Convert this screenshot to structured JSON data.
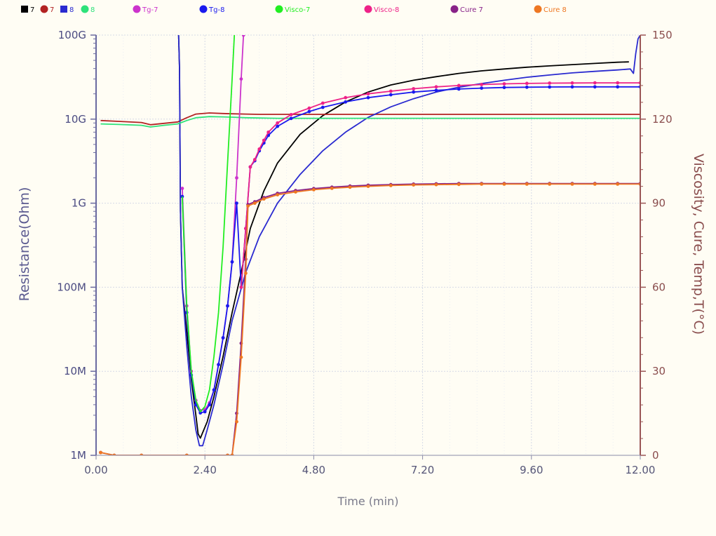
{
  "chart_data": {
    "type": "line",
    "xlabel": "Time (min)",
    "ylabel_left": "Resistance(Ohm)",
    "ylabel_right": "Viscosity, Cure, Temp,T(°C)",
    "xlim": [
      0,
      12
    ],
    "ylim_left": [
      1000000,
      100000000000
    ],
    "ylim_right": [
      0,
      150
    ],
    "left_scale": "log",
    "grid": true,
    "x_ticks": [
      "0.00",
      "2.40",
      "4.80",
      "7.20",
      "9.60",
      "12.00"
    ],
    "y_left_ticks": [
      "1M",
      "10M",
      "100M",
      "1G",
      "10G",
      "100G"
    ],
    "y_right_ticks": [
      "0",
      "30",
      "60",
      "90",
      "120",
      "150"
    ],
    "legend": [
      {
        "label": "7",
        "color": "#000000",
        "marker": "square"
      },
      {
        "label": "7",
        "color": "#b22222",
        "marker": "circle"
      },
      {
        "label": "8",
        "color": "#2a2ad0",
        "marker": "square"
      },
      {
        "label": "8",
        "color": "#2ee27a",
        "marker": "circle"
      },
      {
        "label": "Tg-7",
        "color": "#cc33cc",
        "marker": "circle"
      },
      {
        "label": "Tg-8",
        "color": "#1a1aee",
        "marker": "circle"
      },
      {
        "label": "Visco-7",
        "color": "#22ee22",
        "marker": "circle"
      },
      {
        "label": "Visco-8",
        "color": "#ee2288",
        "marker": "circle"
      },
      {
        "label": "Cure 7",
        "color": "#882288",
        "marker": "circle"
      },
      {
        "label": "Cure 8",
        "color": "#ee7722",
        "marker": "circle"
      }
    ],
    "series": [
      {
        "axis": "left",
        "color": "#000000",
        "markers": false,
        "x": [
          1.82,
          1.84,
          1.86,
          1.9,
          2.0,
          2.1,
          2.2,
          2.25,
          2.3,
          2.45,
          2.6,
          2.8,
          3.0,
          3.2,
          3.4,
          3.7,
          4.0,
          4.5,
          5.0,
          5.5,
          6.0,
          6.5,
          7.0,
          7.5,
          8.0,
          8.5,
          9.0,
          9.5,
          10.0,
          10.5,
          11.0,
          11.5,
          11.75
        ],
        "y": [
          100000000000,
          40000000000,
          800000000,
          100000000,
          30000000,
          8000000,
          3000000,
          1800000,
          1600000,
          2500000,
          5000000,
          15000000,
          50000000,
          150000000,
          500000000,
          1400000000,
          3000000000,
          6600000000,
          11000000000,
          16000000000,
          21000000000,
          25500000000,
          29000000000,
          32000000000,
          35000000000,
          37500000000,
          39500000000,
          41500000000,
          43000000000,
          44500000000,
          46000000000,
          47500000000,
          48000000000
        ]
      },
      {
        "axis": "right",
        "color": "#b22222",
        "markers": false,
        "x": [
          0.1,
          0.5,
          1.0,
          1.2,
          1.5,
          1.8,
          2.0,
          2.2,
          2.5,
          2.8,
          3.0,
          3.3,
          3.6,
          4.0,
          5.0,
          7.0,
          9.0,
          11.0,
          12.0
        ],
        "y": [
          119.5,
          119.2,
          118.8,
          118.0,
          118.5,
          119.0,
          120.5,
          121.8,
          122.2,
          122.0,
          121.9,
          121.8,
          121.7,
          121.7,
          121.7,
          121.7,
          121.7,
          121.7,
          121.7
        ]
      },
      {
        "axis": "left",
        "color": "#2a2ad0",
        "markers": false,
        "x": [
          1.82,
          1.84,
          1.86,
          1.9,
          2.0,
          2.1,
          2.2,
          2.28,
          2.35,
          2.45,
          2.6,
          2.8,
          3.0,
          3.3,
          3.6,
          4.0,
          4.5,
          5.0,
          5.5,
          6.0,
          6.5,
          7.0,
          7.5,
          8.0,
          8.5,
          9.0,
          9.5,
          10.0,
          10.5,
          11.0,
          11.5,
          11.78,
          11.85,
          11.9,
          11.95,
          12.0
        ],
        "y": [
          100000000000,
          40000000000,
          800000000,
          100000000,
          20000000,
          5000000,
          2000000,
          1300000,
          1300000,
          2000000,
          4000000,
          12000000,
          40000000,
          150000000,
          400000000,
          1000000000,
          2200000000,
          4200000000,
          7000000000,
          10500000000,
          14000000000,
          17500000000,
          21000000000,
          24000000000,
          26500000000,
          29000000000,
          31500000000,
          33500000000,
          35500000000,
          37000000000,
          38500000000,
          39500000000,
          35000000000,
          60000000000,
          90000000000,
          100000000000
        ]
      },
      {
        "axis": "right",
        "color": "#2ee27a",
        "markers": false,
        "x": [
          0.1,
          0.5,
          1.0,
          1.2,
          1.5,
          1.8,
          2.0,
          2.2,
          2.5,
          2.8,
          3.0,
          3.3,
          3.6,
          4.0,
          5.0,
          7.0,
          9.0,
          11.0,
          12.0
        ],
        "y": [
          118.3,
          118.1,
          117.8,
          117.2,
          117.8,
          118.3,
          119.5,
          120.5,
          120.9,
          120.8,
          120.7,
          120.5,
          120.4,
          120.3,
          120.3,
          120.3,
          120.3,
          120.3,
          120.3
        ]
      },
      {
        "axis": "left",
        "color": "#cc33cc",
        "markers": true,
        "x": [
          1.9,
          2.0,
          2.1,
          2.2,
          2.3,
          2.4,
          2.5,
          2.6,
          2.7,
          2.8,
          2.9,
          3.0,
          3.1,
          3.2,
          3.25
        ],
        "y": [
          1500000000,
          60000000,
          10000000,
          4500000,
          3400000,
          3500000,
          4200000,
          6000000,
          12000000,
          25000000,
          60000000,
          200000000,
          2000000000,
          30000000000,
          100000000000
        ]
      },
      {
        "axis": "left",
        "color": "#1a1aee",
        "markers": true,
        "x": [
          1.9,
          2.0,
          2.1,
          2.2,
          2.3,
          2.4,
          2.5,
          2.6,
          2.7,
          2.8,
          2.9,
          3.0,
          3.1,
          3.2,
          3.3,
          3.4,
          3.5,
          3.6,
          3.7,
          3.8,
          4.0,
          4.3,
          4.7,
          5.0,
          5.5,
          6.0,
          6.5,
          7.0,
          7.5,
          8.0,
          8.5,
          9.0,
          9.5,
          10.0,
          10.5,
          11.0,
          11.5,
          12.0
        ],
        "y": [
          1200000000,
          50000000,
          9000000,
          4000000,
          3200000,
          3300000,
          4000000,
          6000000,
          12000000,
          25000000,
          60000000,
          200000000,
          1000000000,
          100000000,
          500000000,
          2700000000,
          3200000000,
          4200000000,
          5200000000,
          6400000000,
          8200000000,
          10200000000,
          12300000000,
          13800000000,
          16000000000,
          18000000000,
          19500000000,
          21000000000,
          22000000000,
          22800000000,
          23400000000,
          23800000000,
          24000000000,
          24100000000,
          24200000000,
          24200000000,
          24200000000,
          24200000000
        ]
      },
      {
        "axis": "left",
        "color": "#22ee22",
        "markers": false,
        "x": [
          1.9,
          2.0,
          2.1,
          2.2,
          2.3,
          2.4,
          2.5,
          2.6,
          2.7,
          2.8,
          2.9,
          3.0,
          3.05
        ],
        "y": [
          1200000000,
          60000000,
          10000000,
          4500000,
          3300000,
          3800000,
          6000000,
          15000000,
          50000000,
          300000000,
          3000000000,
          30000000000,
          100000000000
        ]
      },
      {
        "axis": "left",
        "color": "#ee2288",
        "markers": true,
        "x": [
          3.2,
          3.3,
          3.4,
          3.5,
          3.6,
          3.7,
          3.8,
          4.0,
          4.3,
          4.7,
          5.0,
          5.5,
          6.0,
          6.5,
          7.0,
          7.5,
          8.0,
          8.5,
          9.0,
          9.5,
          10.0,
          10.5,
          11.0,
          11.5,
          12.0
        ],
        "y": [
          100000000,
          500000000,
          2700000000,
          3300000000,
          4400000000,
          5600000000,
          7000000000,
          9000000000,
          11300000000,
          13500000000,
          15500000000,
          18000000000,
          20000000000,
          21500000000,
          23000000000,
          24200000000,
          25100000000,
          25800000000,
          26300000000,
          26600000000,
          26800000000,
          26900000000,
          27000000000,
          27000000000,
          27000000000
        ]
      },
      {
        "axis": "right",
        "color": "#882288",
        "markers": true,
        "x": [
          0.1,
          0.4,
          1.0,
          2.0,
          2.9,
          3.0,
          3.1,
          3.2,
          3.3,
          3.35,
          3.5,
          3.7,
          4.0,
          4.4,
          4.8,
          5.2,
          5.6,
          6.0,
          6.5,
          7.0,
          7.5,
          8.0,
          8.5,
          9.0,
          9.5,
          10.0,
          10.5,
          11.0,
          11.5,
          12.0
        ],
        "y": [
          1,
          0,
          0,
          0,
          0,
          0,
          15,
          40,
          70,
          89.5,
          90.5,
          92,
          93.5,
          94.5,
          95.2,
          95.7,
          96.1,
          96.4,
          96.6,
          96.8,
          96.9,
          97.0,
          97.0,
          97.0,
          97.0,
          97.0,
          97.0,
          97.0,
          97.0,
          97.0
        ]
      },
      {
        "axis": "right",
        "color": "#ee7722",
        "markers": true,
        "x": [
          0.1,
          0.4,
          1.0,
          2.0,
          2.9,
          3.0,
          3.1,
          3.2,
          3.3,
          3.35,
          3.5,
          3.7,
          4.0,
          4.4,
          4.8,
          5.2,
          5.6,
          6.0,
          6.5,
          7.0,
          7.5,
          8.0,
          8.5,
          9.0,
          9.5,
          10.0,
          10.5,
          11.0,
          11.5,
          12.0
        ],
        "y": [
          1,
          0,
          0,
          0,
          0,
          0,
          12,
          35,
          65,
          89,
          90,
          91.5,
          93,
          94,
          94.8,
          95.3,
          95.7,
          96.0,
          96.3,
          96.5,
          96.6,
          96.7,
          96.8,
          96.8,
          96.8,
          96.8,
          96.8,
          96.8,
          96.8,
          96.8
        ]
      }
    ]
  }
}
